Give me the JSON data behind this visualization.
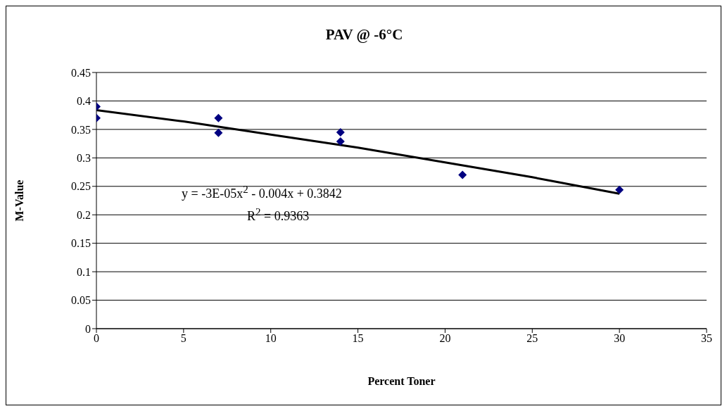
{
  "chart_data": {
    "type": "scatter",
    "title": "PAV @ -6°C",
    "xlabel": "Percent Toner",
    "ylabel": "M-Value",
    "xlim": [
      0,
      35
    ],
    "xticks": [
      0,
      5,
      10,
      15,
      20,
      25,
      30,
      35
    ],
    "ylim": [
      0,
      0.45
    ],
    "yticks": [
      0,
      0.05,
      0.1,
      0.15,
      0.2,
      0.25,
      0.3,
      0.35,
      0.4,
      0.45
    ],
    "grid": "y",
    "legend": false,
    "series": [
      {
        "color": "#000080",
        "marker": "diamond",
        "x": [
          0,
          0,
          7,
          7,
          14,
          14,
          21,
          30
        ],
        "values": [
          0.39,
          0.37,
          0.37,
          0.344,
          0.345,
          0.329,
          0.27,
          0.244
        ]
      },
      {
        "type": "line",
        "color": "#000000",
        "marker": "none",
        "line_style": "solid",
        "x": [
          0,
          5,
          10,
          15,
          20,
          25,
          30
        ],
        "values": [
          0.384,
          0.364,
          0.341,
          0.318,
          0.292,
          0.266,
          0.237
        ]
      }
    ],
    "annotations": [
      "y = -3E-05x$^{2}$ - 0.004x + 0.3842",
      "R$^{2}$ = 0.9363"
    ]
  }
}
